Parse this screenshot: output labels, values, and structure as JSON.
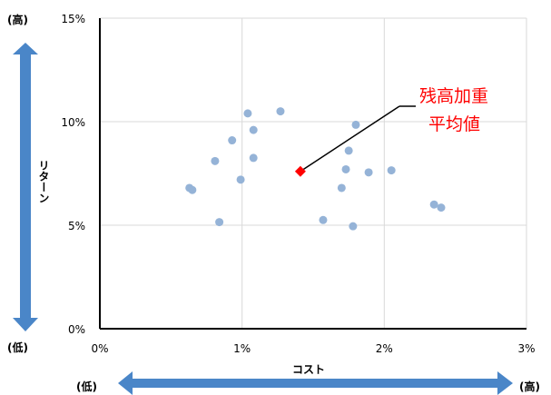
{
  "chart_data": {
    "type": "scatter",
    "title": "",
    "xlabel": "コスト",
    "ylabel": "リターン",
    "xlim": [
      0,
      3
    ],
    "ylim": [
      0,
      15
    ],
    "x_ticks": [
      0,
      1,
      2,
      3
    ],
    "y_ticks": [
      0,
      5,
      10,
      15
    ],
    "x_tick_labels": [
      "0%",
      "1%",
      "2%",
      "3%"
    ],
    "y_tick_labels": [
      "0%",
      "5%",
      "10%",
      "15%"
    ],
    "grid": true,
    "series": [
      {
        "color": "#95b3d7",
        "points": [
          {
            "x": 0.63,
            "y": 6.8
          },
          {
            "x": 0.65,
            "y": 6.7
          },
          {
            "x": 0.81,
            "y": 8.1
          },
          {
            "x": 0.84,
            "y": 5.15
          },
          {
            "x": 0.93,
            "y": 9.1
          },
          {
            "x": 0.99,
            "y": 7.2
          },
          {
            "x": 1.04,
            "y": 10.4
          },
          {
            "x": 1.08,
            "y": 9.6
          },
          {
            "x": 1.08,
            "y": 8.25
          },
          {
            "x": 1.27,
            "y": 10.5
          },
          {
            "x": 1.57,
            "y": 5.25
          },
          {
            "x": 1.7,
            "y": 6.8
          },
          {
            "x": 1.73,
            "y": 7.7
          },
          {
            "x": 1.75,
            "y": 8.6
          },
          {
            "x": 1.78,
            "y": 4.95
          },
          {
            "x": 1.8,
            "y": 9.85
          },
          {
            "x": 1.89,
            "y": 7.55
          },
          {
            "x": 2.05,
            "y": 7.65
          },
          {
            "x": 2.35,
            "y": 6.0
          },
          {
            "x": 2.4,
            "y": 5.85
          }
        ]
      },
      {
        "color": "#ff0000",
        "marker": "diamond",
        "points": [
          {
            "x": 1.41,
            "y": 7.6
          }
        ]
      }
    ],
    "annotation": {
      "text_line1": "残高加重",
      "text_line2": "平均値"
    }
  },
  "side_labels": {
    "y_high": "(高)",
    "y_low": "(低)",
    "x_low": "(低)",
    "x_high": "(高)"
  },
  "colors": {
    "arrow": "#4a86c8",
    "grid": "#d9d9d9",
    "axis": "#000000"
  }
}
